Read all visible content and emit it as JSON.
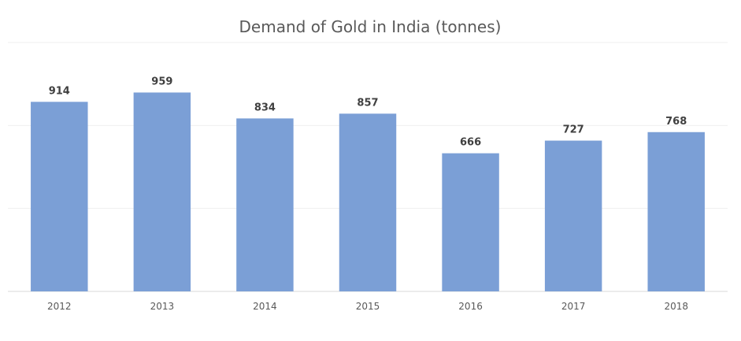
{
  "chart_data": {
    "type": "bar",
    "title": "Demand of Gold in India (tonnes)",
    "categories": [
      "2012",
      "2013",
      "2014",
      "2015",
      "2016",
      "2017",
      "2018"
    ],
    "values": [
      914,
      959,
      834,
      857,
      666,
      727,
      768
    ],
    "xlabel": "",
    "ylabel": "",
    "ylim": [
      0,
      1200
    ],
    "grid": true,
    "gridlines_at": [
      400,
      800,
      1200
    ],
    "legend": "none",
    "bar_color": "#7b9fd6",
    "data_labels": true
  }
}
